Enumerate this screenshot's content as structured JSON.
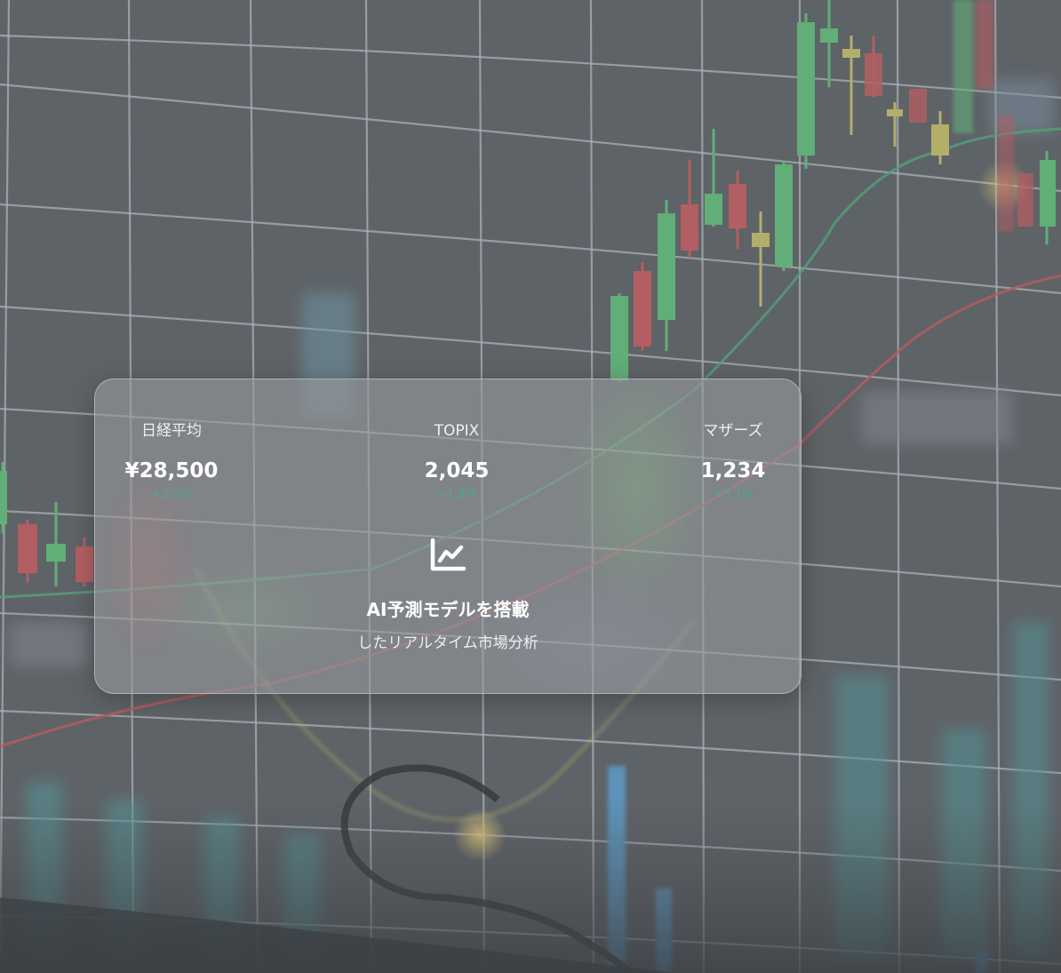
{
  "markets": [
    {
      "name": "日経平均",
      "value": "¥28,500",
      "change": "+2.3%"
    },
    {
      "name": "TOPIX",
      "value": "2,045",
      "change": "+1.8%"
    },
    {
      "name": "マザーズ",
      "value": "1,234",
      "change": "+3.1%"
    }
  ],
  "feature": {
    "icon": "line-chart-icon",
    "title": "AI予測モデルを搭載",
    "subtitle": "したリアルタイム市場分析"
  },
  "colors": {
    "up_candle": "#5fc07a",
    "down_candle": "#c85a5e",
    "neutral_candle": "#c9c06a",
    "change_positive": "#33c08b",
    "grid": "#b9bec6"
  }
}
